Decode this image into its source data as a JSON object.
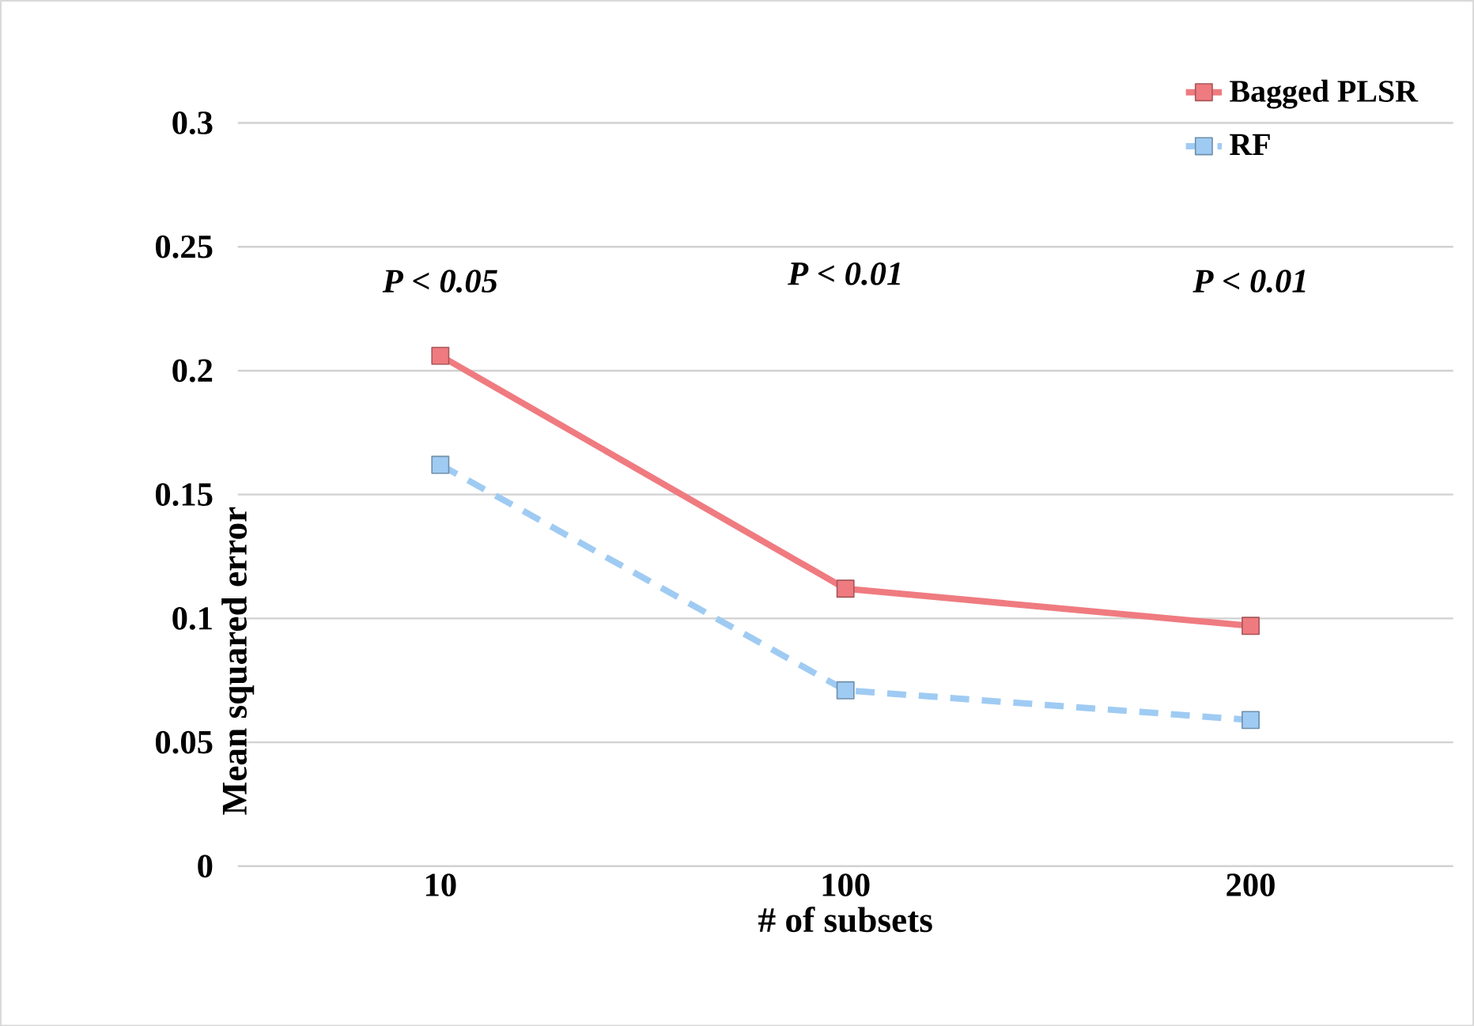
{
  "chart_data": {
    "type": "line",
    "xlabel": "# of subsets",
    "ylabel": "Mean squared error",
    "categories": [
      "10",
      "100",
      "200"
    ],
    "series": [
      {
        "name": "Bagged PLSR",
        "color": "#ef7b80",
        "values": [
          0.206,
          0.112,
          0.097
        ],
        "line_style": "solid"
      },
      {
        "name": "RF",
        "color": "#9fcbf3",
        "values": [
          0.162,
          0.071,
          0.059
        ],
        "line_style": "dashed"
      }
    ],
    "ylim": [
      0,
      0.3
    ],
    "yticks": [
      0,
      0.05,
      0.1,
      0.15,
      0.2,
      0.25,
      0.3
    ],
    "grid": "y",
    "legend": "top right",
    "marker": "square",
    "annotations": [
      "*P < 0.05*",
      "*P < 0.01*",
      "*P < 0.01*"
    ]
  }
}
